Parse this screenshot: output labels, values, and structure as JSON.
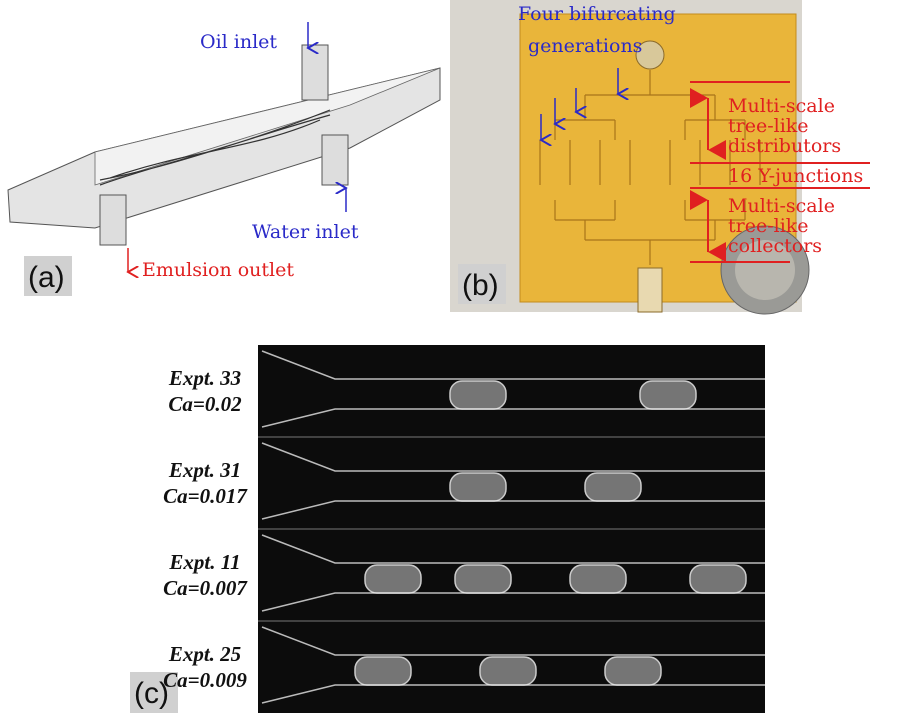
{
  "panel_a": {
    "label": "(a)",
    "oil_inlet": "Oil inlet",
    "water_inlet": "Water inlet",
    "emulsion_outlet": "Emulsion outlet"
  },
  "panel_b": {
    "label": "(b)",
    "generations": [
      "Four bifurcating",
      "generations"
    ],
    "distributors": [
      "Multi-scale",
      "tree-like",
      "distributors"
    ],
    "junctions": "16 Y-junctions",
    "collectors": [
      "Multi-scale",
      "tree-like",
      "collectors"
    ]
  },
  "panel_c": {
    "label": "(c)",
    "experiments": [
      {
        "name": "Expt. 33",
        "ca": "Ca=0.02"
      },
      {
        "name": "Expt. 31",
        "ca": "Ca=0.017"
      },
      {
        "name": "Expt. 11",
        "ca": "Ca=0.007"
      },
      {
        "name": "Expt. 25",
        "ca": "Ca=0.009"
      }
    ]
  }
}
